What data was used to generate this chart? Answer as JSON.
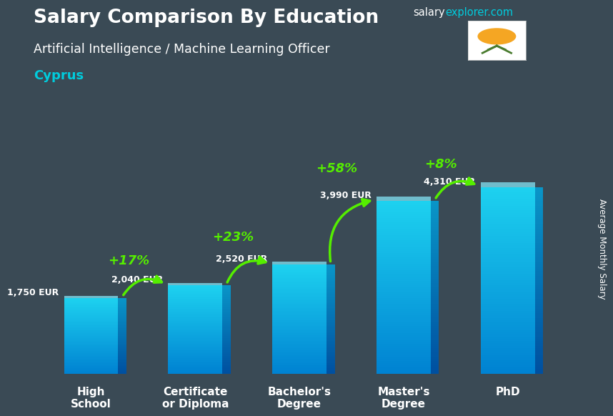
{
  "title": "Salary Comparison By Education",
  "salary_text": "salary",
  "explorer_text": "explorer.com",
  "subtitle": "Artificial Intelligence / Machine Learning Officer",
  "location": "Cyprus",
  "ylabel": "Average Monthly Salary",
  "categories": [
    "High\nSchool",
    "Certificate\nor Diploma",
    "Bachelor's\nDegree",
    "Master's\nDegree",
    "PhD"
  ],
  "values": [
    1750,
    2040,
    2520,
    3990,
    4310
  ],
  "value_labels": [
    "1,750 EUR",
    "2,040 EUR",
    "2,520 EUR",
    "3,990 EUR",
    "4,310 EUR"
  ],
  "pct_labels": [
    "+17%",
    "+23%",
    "+58%",
    "+8%"
  ],
  "bg_color": "#3a4a55",
  "bar_color_bottom": "#0077bb",
  "bar_color_top": "#00ccee",
  "green": "#55ee00",
  "white": "#ffffff",
  "cyan": "#00ccdd",
  "ylim_max": 5200,
  "bar_width": 0.52
}
